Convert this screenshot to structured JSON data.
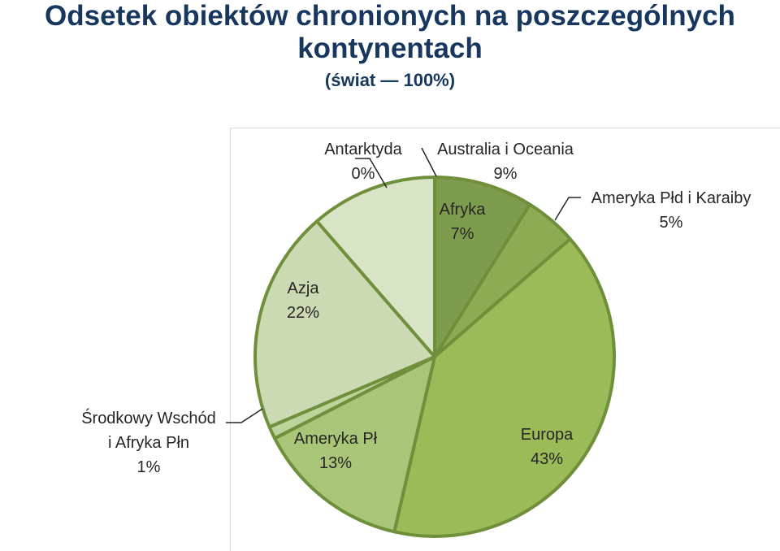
{
  "title_line1": "Odsetek  obiektów chronionych na poszczególnych",
  "title_line2": "kontynentach",
  "subtitle": "(świat — 100%)",
  "chart_data": {
    "type": "pie",
    "slices": [
      {
        "name": "Australia i Oceania",
        "value": 9,
        "label": "9%",
        "color": "#7e9c4e"
      },
      {
        "name": "Ameryka Płd i Karaiby",
        "value": 5,
        "label": "5%",
        "color": "#8cab53"
      },
      {
        "name": "Europa",
        "value": 43,
        "label": "43%",
        "color": "#9bbb59"
      },
      {
        "name": "Ameryka Pł",
        "value": 13,
        "label": "13%",
        "color": "#a9c678"
      },
      {
        "name": "Środkowy Wschód i Afryka Płn",
        "value": 1,
        "label": "1%",
        "color": "#bcd39b"
      },
      {
        "name": "Azja",
        "value": 22,
        "label": "22%",
        "color": "#ccdab3"
      },
      {
        "name": "Afryka",
        "value": 7,
        "label": "7%",
        "color": "#d9e4c7"
      },
      {
        "name": "Antarktyda",
        "value": 0,
        "label": "0%",
        "color": "#e8efdd"
      }
    ],
    "label_texts": {
      "antarktyda": [
        "Antarktyda",
        "0%"
      ],
      "australia": [
        "Australia i Oceania",
        "9%"
      ],
      "afryka": [
        "Afryka",
        "7%"
      ],
      "ameryka_pld": [
        "Ameryka Płd i Karaiby",
        "5%"
      ],
      "azja": [
        "Azja",
        "22%"
      ],
      "srodkowy": [
        "Środkowy Wschód",
        "i Afryka Płn",
        "1%"
      ],
      "ameryka_pl": [
        "Ameryka Pł",
        "13%"
      ],
      "europa": [
        "Europa",
        "43%"
      ]
    },
    "border_color": "#6f8f3a"
  }
}
